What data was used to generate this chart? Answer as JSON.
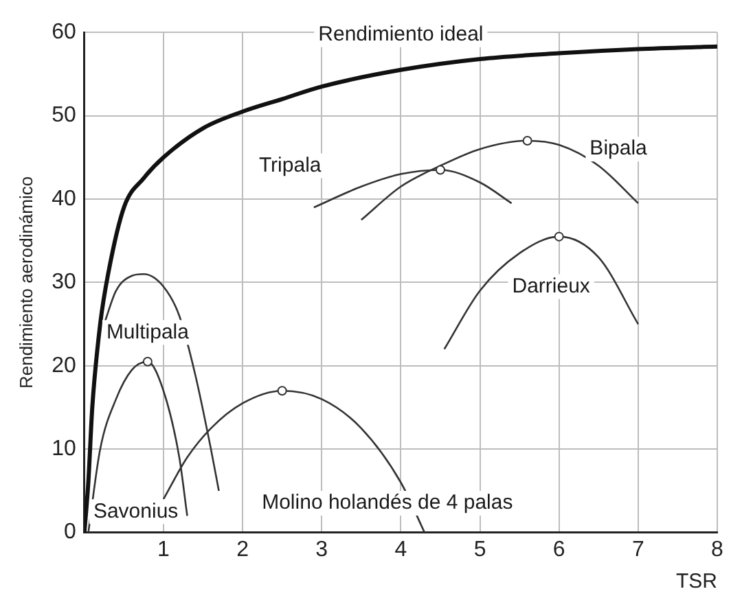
{
  "chart_data": {
    "type": "line",
    "ylabel": "Rendimiento aerodinámico",
    "xlabel": "TSR",
    "xlim": [
      0,
      8
    ],
    "xticks": [
      {
        "value": 0,
        "label": null
      },
      1,
      2,
      3,
      4,
      5,
      6,
      7,
      8
    ],
    "ylim": [
      0,
      60
    ],
    "yticks": [
      0,
      10,
      20,
      30,
      40,
      50,
      60
    ],
    "grid": true,
    "legend": false,
    "marker": "none",
    "line_style": "solid",
    "series": [
      {
        "name": "Rendimiento ideal",
        "color": "#111111",
        "x": [
          0,
          0.05,
          0.1,
          0.2,
          0.3,
          0.5,
          0.75,
          1,
          1.5,
          2,
          2.5,
          3,
          4,
          5,
          6,
          7,
          8
        ],
        "values": [
          0,
          6,
          15,
          25,
          31,
          39,
          42.5,
          45,
          48.5,
          50.5,
          52,
          53.5,
          55.5,
          56.8,
          57.5,
          58,
          58.3
        ]
      },
      {
        "name": "Multipala",
        "color": "#333333",
        "x": [
          0.25,
          0.4,
          0.6,
          0.75,
          1,
          1.2,
          1.4,
          1.6,
          1.7
        ],
        "values": [
          25,
          29,
          30.8,
          31,
          29.5,
          26,
          19,
          10,
          5
        ]
      },
      {
        "name": "Savonius",
        "color": "#333333",
        "x": [
          0.05,
          0.2,
          0.4,
          0.6,
          0.8,
          1,
          1.2,
          1.3
        ],
        "values": [
          0,
          10,
          16,
          19.5,
          20.5,
          17,
          9,
          2
        ]
      },
      {
        "name": "Molino holandés de 4 palas",
        "color": "#333333",
        "x": [
          1,
          1.3,
          1.6,
          2,
          2.5,
          3,
          3.5,
          4,
          4.3
        ],
        "values": [
          4,
          9,
          12.5,
          15.5,
          17,
          16,
          12.5,
          6,
          0
        ]
      },
      {
        "name": "Tripala",
        "color": "#333333",
        "x": [
          2.9,
          3.5,
          4,
          4.5,
          5,
          5.4
        ],
        "values": [
          39,
          41.5,
          43,
          43.5,
          42,
          39.5
        ]
      },
      {
        "name": "Bipala",
        "color": "#333333",
        "x": [
          3.5,
          4,
          4.5,
          5,
          5.6,
          6,
          6.5,
          7
        ],
        "values": [
          37.5,
          41.5,
          44,
          46,
          47,
          46.5,
          44,
          39.5
        ]
      },
      {
        "name": "Darrieux",
        "color": "#333333",
        "x": [
          4.55,
          5,
          5.5,
          6,
          6.5,
          7
        ],
        "values": [
          22,
          29,
          33.5,
          35.5,
          33,
          25
        ]
      },
      {
        "type": "scatter",
        "marker": "circle",
        "color": "#333333",
        "x": [
          0.8,
          2.5,
          4.5,
          5.6,
          6
        ],
        "values": [
          20.5,
          17,
          43.5,
          47,
          35.5
        ]
      }
    ]
  }
}
